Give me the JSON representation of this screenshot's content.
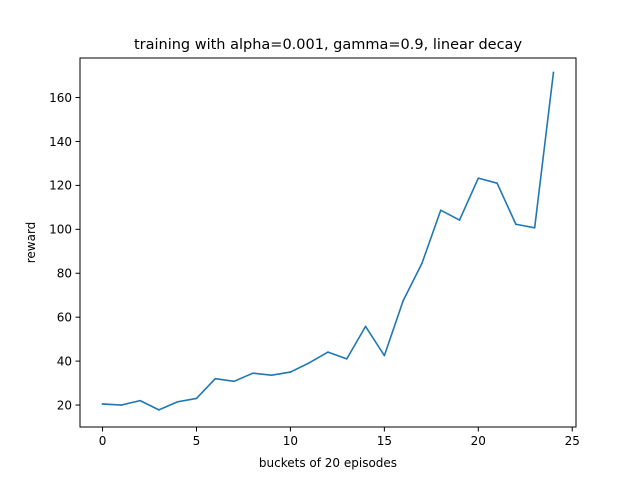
{
  "chart_data": {
    "type": "line",
    "title": "training with alpha=0.001, gamma=0.9, linear decay",
    "xlabel": "buckets of 20 episodes",
    "ylabel": "reward",
    "xlim": [
      -1.2,
      25.2
    ],
    "ylim": [
      10,
      178
    ],
    "xticks": [
      0,
      5,
      10,
      15,
      20,
      25
    ],
    "yticks": [
      20,
      40,
      60,
      80,
      100,
      120,
      140,
      160
    ],
    "grid": false,
    "legend": "none",
    "series": [
      {
        "color": "#1f77b4",
        "x": [
          0,
          1,
          2,
          3,
          4,
          5,
          6,
          7,
          8,
          9,
          10,
          11,
          12,
          13,
          14,
          15,
          16,
          17,
          18,
          19,
          20,
          21,
          22,
          23,
          24
        ],
        "values": [
          20.5,
          20,
          22,
          17.8,
          21.5,
          23,
          32,
          30.8,
          34.5,
          33.6,
          35,
          39.2,
          44.1,
          41,
          55.8,
          42.5,
          67.5,
          84.5,
          108.7,
          104.2,
          123.3,
          121,
          102.3,
          100.7,
          171.4
        ]
      }
    ]
  }
}
